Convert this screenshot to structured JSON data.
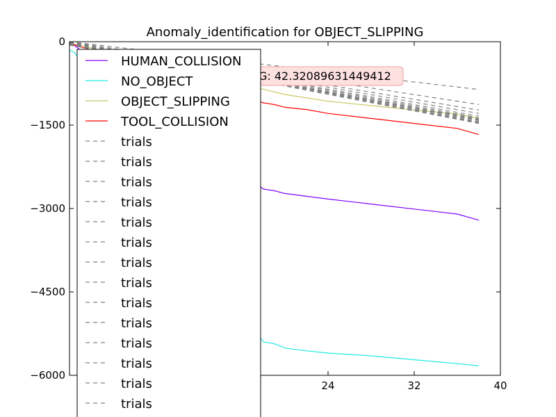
{
  "chart_data": {
    "type": "line",
    "title": "Anomaly_identification for OBJECT_SLIPPING",
    "xlabel": "",
    "ylabel": "",
    "xlim": [
      0,
      40
    ],
    "ylim": [
      -6000,
      0
    ],
    "xticks": [
      24,
      32,
      40
    ],
    "yticks": [
      0,
      -1500,
      -3000,
      -4500,
      -6000
    ],
    "ytick_labels": [
      "0",
      "−1500",
      "−3000",
      "−4500",
      "−6000"
    ],
    "legend_location": "upper-left",
    "annotation": "G: 42.32089631449412",
    "series": [
      {
        "name": "HUMAN_COLLISION",
        "color": "#7f00ff",
        "style": "solid",
        "x": [
          0,
          18,
          19,
          20,
          22,
          24,
          28,
          32,
          36,
          38
        ],
        "y": [
          0,
          -2650,
          -2680,
          -2730,
          -2780,
          -2830,
          -2920,
          -3010,
          -3100,
          -3210
        ]
      },
      {
        "name": "NO_OBJECT",
        "color": "#1de9e0",
        "style": "solid",
        "x": [
          0,
          0.5,
          18,
          19,
          20,
          22,
          24,
          28,
          32,
          36,
          38
        ],
        "y": [
          -150,
          -200,
          -5400,
          -5430,
          -5510,
          -5560,
          -5600,
          -5650,
          -5720,
          -5790,
          -5830
        ]
      },
      {
        "name": "OBJECT_SLIPPING",
        "color": "#c8c864",
        "style": "solid",
        "x": [
          0,
          20,
          24,
          28,
          32,
          36,
          38
        ],
        "y": [
          -20,
          -950,
          -1070,
          -1150,
          -1230,
          -1300,
          -1380
        ]
      },
      {
        "name": "TOOL_COLLISION",
        "color": "#ff0000",
        "style": "solid",
        "x": [
          0,
          18,
          19,
          20,
          22,
          24,
          28,
          32,
          36,
          38
        ],
        "y": [
          -30,
          -1100,
          -1130,
          -1180,
          -1220,
          -1290,
          -1380,
          -1470,
          -1560,
          -1670
        ]
      },
      {
        "name": "trials",
        "color": "#808080",
        "style": "dashed",
        "x": [
          0,
          38
        ],
        "y": [
          0,
          -860
        ]
      },
      {
        "name": "trials",
        "color": "#808080",
        "style": "dashed",
        "x": [
          0,
          38
        ],
        "y": [
          0,
          -1130
        ]
      },
      {
        "name": "trials",
        "color": "#808080",
        "style": "dashed",
        "x": [
          0,
          38
        ],
        "y": [
          -10,
          -1230
        ]
      },
      {
        "name": "trials",
        "color": "#808080",
        "style": "dashed",
        "x": [
          0,
          38
        ],
        "y": [
          -10,
          -1290
        ]
      },
      {
        "name": "trials",
        "color": "#808080",
        "style": "dashed",
        "x": [
          0,
          38
        ],
        "y": [
          -20,
          -1340
        ]
      },
      {
        "name": "trials",
        "color": "#808080",
        "style": "dashed",
        "x": [
          0,
          38
        ],
        "y": [
          -20,
          -1370
        ]
      },
      {
        "name": "trials",
        "color": "#808080",
        "style": "dashed",
        "x": [
          0,
          38
        ],
        "y": [
          -30,
          -1400
        ]
      },
      {
        "name": "trials",
        "color": "#808080",
        "style": "dashed",
        "x": [
          0,
          38
        ],
        "y": [
          -30,
          -1420
        ]
      },
      {
        "name": "trials",
        "color": "#808080",
        "style": "dashed",
        "x": [
          0,
          38
        ],
        "y": [
          -40,
          -1440
        ]
      },
      {
        "name": "trials",
        "color": "#808080",
        "style": "dashed",
        "x": [
          0,
          38
        ],
        "y": [
          -40,
          -1460
        ]
      },
      {
        "name": "trials",
        "color": "#808080",
        "style": "dashed",
        "x": [
          0,
          38
        ],
        "y": [
          -50,
          -1470
        ]
      },
      {
        "name": "trials",
        "color": "#808080",
        "style": "dashed",
        "x": [
          0,
          38
        ],
        "y": [
          -50,
          -1390
        ]
      },
      {
        "name": "trials",
        "color": "#808080",
        "style": "dashed",
        "x": [
          0,
          38
        ],
        "y": [
          -60,
          -1410
        ]
      },
      {
        "name": "trials",
        "color": "#808080",
        "style": "dashed",
        "x": [
          0,
          38
        ],
        "y": [
          -60,
          -1450
        ]
      }
    ]
  }
}
